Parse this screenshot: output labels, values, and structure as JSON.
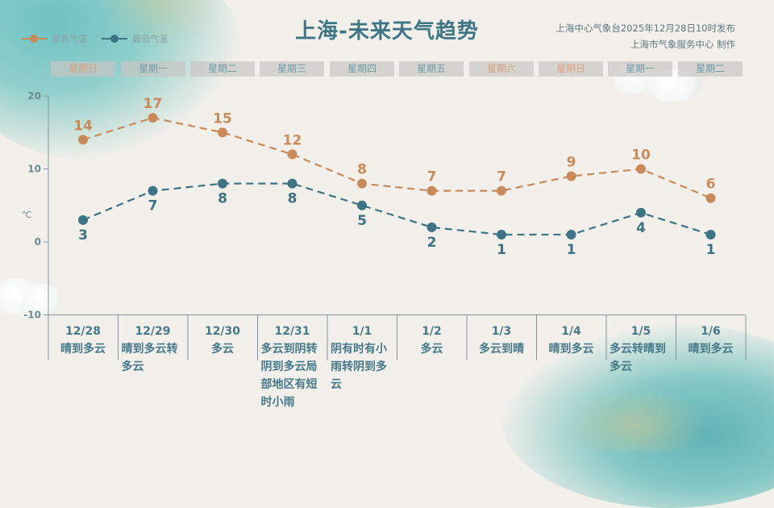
{
  "header": {
    "title": "上海-未来天气趋势",
    "publish_line1": "上海中心气象台2025年12月28日10时发布",
    "publish_line2": "上海市气象服务中心  制作"
  },
  "legend": {
    "high": {
      "label": "最高气温",
      "color": "#c98a5a"
    },
    "low": {
      "label": "最低气温",
      "color": "#3d7485"
    }
  },
  "weekdays": [
    {
      "label": "星期日",
      "weekend": true
    },
    {
      "label": "星期一",
      "weekend": false
    },
    {
      "label": "星期二",
      "weekend": false
    },
    {
      "label": "星期三",
      "weekend": false
    },
    {
      "label": "星期四",
      "weekend": false
    },
    {
      "label": "星期五",
      "weekend": false
    },
    {
      "label": "星期六",
      "weekend": true
    },
    {
      "label": "星期日",
      "weekend": true
    },
    {
      "label": "星期一",
      "weekend": false
    },
    {
      "label": "星期二",
      "weekend": false
    }
  ],
  "days": [
    {
      "date": "12/28",
      "desc": "晴到多云"
    },
    {
      "date": "12/29",
      "desc": "晴到多云转多云"
    },
    {
      "date": "12/30",
      "desc": "多云"
    },
    {
      "date": "12/31",
      "desc": "多云到阴转阴到多云局部地区有短时小雨"
    },
    {
      "date": "1/1",
      "desc": "阴有时有小雨转阴到多云"
    },
    {
      "date": "1/2",
      "desc": "多云"
    },
    {
      "date": "1/3",
      "desc": "多云到晴"
    },
    {
      "date": "1/4",
      "desc": "晴到多云"
    },
    {
      "date": "1/5",
      "desc": "多云转晴到多云"
    },
    {
      "date": "1/6",
      "desc": "晴到多云"
    }
  ],
  "colors": {
    "high": "#c98a5a",
    "low": "#3d7485",
    "axis": "#7f969b",
    "weekday_text": "#6f9aa5",
    "weekend_text": "#d8a07c"
  },
  "chart_data": {
    "type": "line",
    "title": "上海-未来天气趋势",
    "xlabel": "",
    "ylabel": "℃",
    "ylim": [
      -10,
      20
    ],
    "yticks": [
      20,
      10,
      0,
      -10
    ],
    "categories": [
      "12/28",
      "12/29",
      "12/30",
      "12/31",
      "1/1",
      "1/2",
      "1/3",
      "1/4",
      "1/5",
      "1/6"
    ],
    "series": [
      {
        "name": "最高气温",
        "values": [
          14,
          17,
          15,
          12,
          8,
          7,
          7,
          9,
          10,
          6
        ],
        "color": "#c98a5a",
        "style": "dashed"
      },
      {
        "name": "最低气温",
        "values": [
          3,
          7,
          8,
          8,
          5,
          2,
          1,
          1,
          4,
          1
        ],
        "color": "#3d7485",
        "style": "dashed"
      }
    ],
    "grid": false,
    "legend_position": "top-left"
  }
}
